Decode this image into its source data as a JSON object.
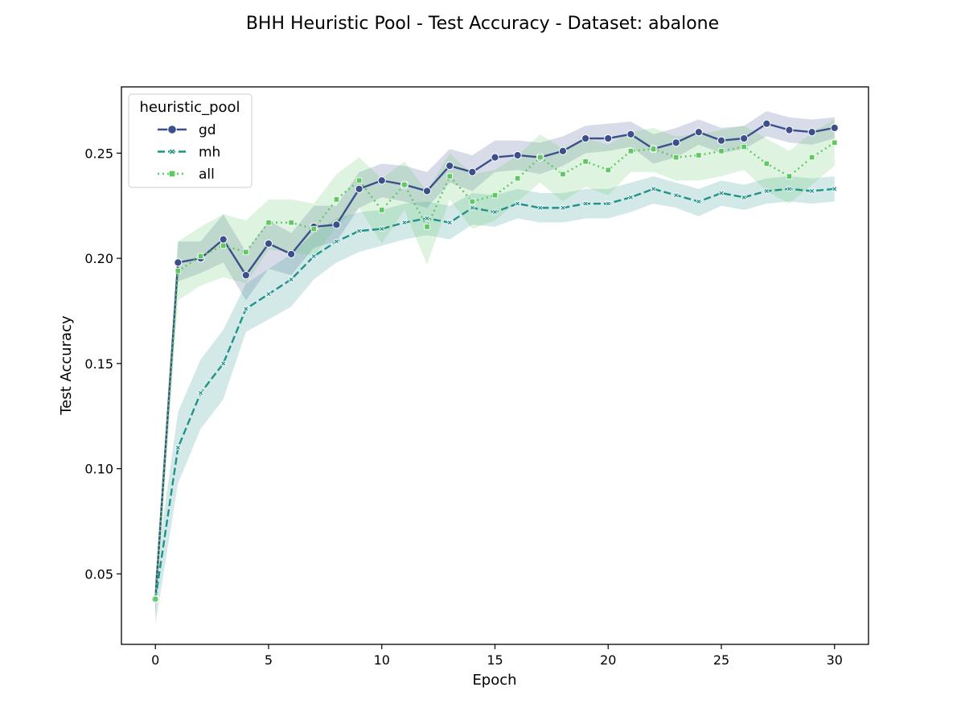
{
  "chart_data": {
    "type": "line",
    "title": "BHH Heuristic Pool - Test Accuracy - Dataset: abalone",
    "xlabel": "Epoch",
    "ylabel": "Test Accuracy",
    "xlim": [
      -1.5,
      31.5
    ],
    "ylim": [
      0.0165,
      0.2815
    ],
    "xticks": [
      0,
      5,
      10,
      15,
      20,
      25,
      30
    ],
    "yticks": [
      0.05,
      0.1,
      0.15,
      0.2,
      0.25
    ],
    "xtick_labels": [
      "0",
      "5",
      "10",
      "15",
      "20",
      "25",
      "30"
    ],
    "ytick_labels": [
      "0.05",
      "0.10",
      "0.15",
      "0.20",
      "0.25"
    ],
    "grid": false,
    "legend_title": "heuristic_pool",
    "legend_position": "upper-left",
    "x": [
      0,
      1,
      2,
      3,
      4,
      5,
      6,
      7,
      8,
      9,
      10,
      11,
      12,
      13,
      14,
      15,
      16,
      17,
      18,
      19,
      20,
      21,
      22,
      23,
      24,
      25,
      26,
      27,
      28,
      29,
      30
    ],
    "series": [
      {
        "name": "gd",
        "color": "#3b4f8a",
        "dash": "solid",
        "marker": "circle",
        "values": [
          0.038,
          0.198,
          0.2,
          0.209,
          0.192,
          0.207,
          0.202,
          0.215,
          0.216,
          0.233,
          0.237,
          0.235,
          0.232,
          0.244,
          0.241,
          0.248,
          0.249,
          0.248,
          0.251,
          0.257,
          0.257,
          0.259,
          0.252,
          0.255,
          0.26,
          0.256,
          0.257,
          0.264,
          0.261,
          0.26,
          0.262
        ],
        "ci_low": [
          0.03,
          0.189,
          0.193,
          0.198,
          0.18,
          0.195,
          0.192,
          0.205,
          0.208,
          0.224,
          0.229,
          0.227,
          0.224,
          0.236,
          0.232,
          0.241,
          0.242,
          0.24,
          0.244,
          0.25,
          0.251,
          0.253,
          0.245,
          0.248,
          0.254,
          0.25,
          0.252,
          0.258,
          0.255,
          0.254,
          0.257
        ],
        "ci_high": [
          0.046,
          0.208,
          0.208,
          0.221,
          0.203,
          0.218,
          0.212,
          0.225,
          0.225,
          0.241,
          0.245,
          0.244,
          0.241,
          0.252,
          0.249,
          0.256,
          0.256,
          0.255,
          0.258,
          0.263,
          0.264,
          0.265,
          0.259,
          0.262,
          0.266,
          0.262,
          0.263,
          0.27,
          0.267,
          0.266,
          0.267
        ]
      },
      {
        "name": "mh",
        "color": "#21918c",
        "dash": "dashed",
        "marker": "x",
        "values": [
          0.038,
          0.11,
          0.136,
          0.15,
          0.176,
          0.183,
          0.19,
          0.201,
          0.208,
          0.213,
          0.214,
          0.217,
          0.219,
          0.217,
          0.224,
          0.222,
          0.226,
          0.224,
          0.224,
          0.226,
          0.226,
          0.229,
          0.233,
          0.23,
          0.227,
          0.231,
          0.229,
          0.232,
          0.233,
          0.232,
          0.233
        ],
        "ci_low": [
          0.026,
          0.093,
          0.119,
          0.133,
          0.165,
          0.171,
          0.177,
          0.19,
          0.198,
          0.203,
          0.206,
          0.209,
          0.211,
          0.209,
          0.216,
          0.215,
          0.219,
          0.217,
          0.217,
          0.219,
          0.219,
          0.222,
          0.226,
          0.224,
          0.22,
          0.225,
          0.223,
          0.226,
          0.227,
          0.226,
          0.227
        ],
        "ci_high": [
          0.05,
          0.127,
          0.152,
          0.166,
          0.188,
          0.195,
          0.202,
          0.212,
          0.219,
          0.222,
          0.223,
          0.226,
          0.227,
          0.225,
          0.231,
          0.23,
          0.233,
          0.231,
          0.231,
          0.233,
          0.233,
          0.236,
          0.239,
          0.236,
          0.233,
          0.237,
          0.235,
          0.238,
          0.239,
          0.238,
          0.239
        ]
      },
      {
        "name": "all",
        "color": "#5ec962",
        "dash": "dotted",
        "marker": "square",
        "values": [
          0.038,
          0.194,
          0.201,
          0.206,
          0.203,
          0.217,
          0.217,
          0.214,
          0.228,
          0.237,
          0.223,
          0.235,
          0.215,
          0.239,
          0.227,
          0.23,
          0.238,
          0.248,
          0.24,
          0.246,
          0.242,
          0.251,
          0.252,
          0.248,
          0.249,
          0.251,
          0.253,
          0.245,
          0.239,
          0.248,
          0.255
        ],
        "ci_low": [
          0.03,
          0.18,
          0.187,
          0.191,
          0.188,
          0.204,
          0.203,
          0.201,
          0.215,
          0.224,
          0.207,
          0.223,
          0.197,
          0.228,
          0.214,
          0.218,
          0.227,
          0.236,
          0.227,
          0.234,
          0.23,
          0.241,
          0.241,
          0.237,
          0.237,
          0.239,
          0.242,
          0.232,
          0.226,
          0.235,
          0.244
        ],
        "ci_high": [
          0.046,
          0.208,
          0.215,
          0.221,
          0.218,
          0.228,
          0.228,
          0.226,
          0.24,
          0.248,
          0.238,
          0.246,
          0.232,
          0.25,
          0.24,
          0.242,
          0.249,
          0.259,
          0.252,
          0.257,
          0.254,
          0.26,
          0.262,
          0.258,
          0.259,
          0.261,
          0.263,
          0.257,
          0.251,
          0.26,
          0.266
        ]
      }
    ]
  }
}
